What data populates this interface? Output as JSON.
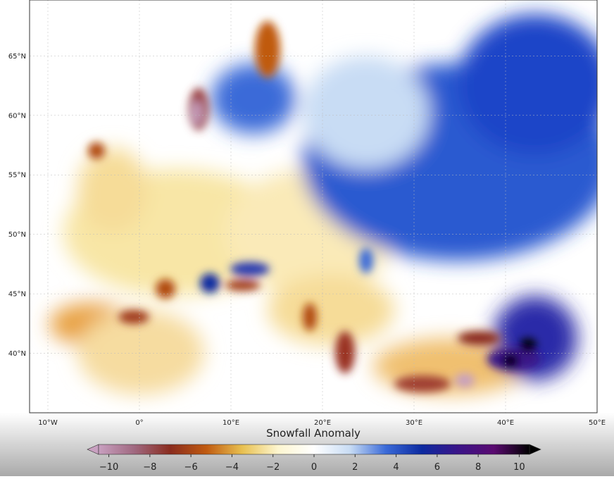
{
  "map": {
    "xlim": [
      -12,
      50
    ],
    "ylim": [
      35,
      69.7
    ],
    "grid": true,
    "xticks": [
      {
        "value": -10,
        "label": "10°W"
      },
      {
        "value": 0,
        "label": "0°"
      },
      {
        "value": 10,
        "label": "10°E"
      },
      {
        "value": 20,
        "label": "20°E"
      },
      {
        "value": 30,
        "label": "30°E"
      },
      {
        "value": 40,
        "label": "40°E"
      },
      {
        "value": 50,
        "label": "50°E"
      }
    ],
    "yticks": [
      {
        "value": 40,
        "label": "40°N"
      },
      {
        "value": 45,
        "label": "45°N"
      },
      {
        "value": 50,
        "label": "50°N"
      },
      {
        "value": 55,
        "label": "55°N"
      },
      {
        "value": 60,
        "label": "60°N"
      },
      {
        "value": 65,
        "label": "65°N"
      }
    ],
    "colorbar": {
      "label": "Snowfall Anomaly",
      "lim": [
        -10.5,
        10.5
      ],
      "ticks": [
        {
          "value": -10,
          "label": "−10"
        },
        {
          "value": -8,
          "label": "−8"
        },
        {
          "value": -6,
          "label": "−6"
        },
        {
          "value": -4,
          "label": "−4"
        },
        {
          "value": -2,
          "label": "−2"
        },
        0,
        2,
        4,
        6,
        8,
        10
      ],
      "colormap": [
        "#c8a0c0",
        "#a06880",
        "#8a2c1e",
        "#c05a10",
        "#e8c050",
        "#fdf6d0",
        "#ffffff",
        "#c8dcf4",
        "#3a6ad8",
        "#0c2aa0",
        "#3a1488",
        "#5a0a70",
        "#000000"
      ]
    }
  }
}
